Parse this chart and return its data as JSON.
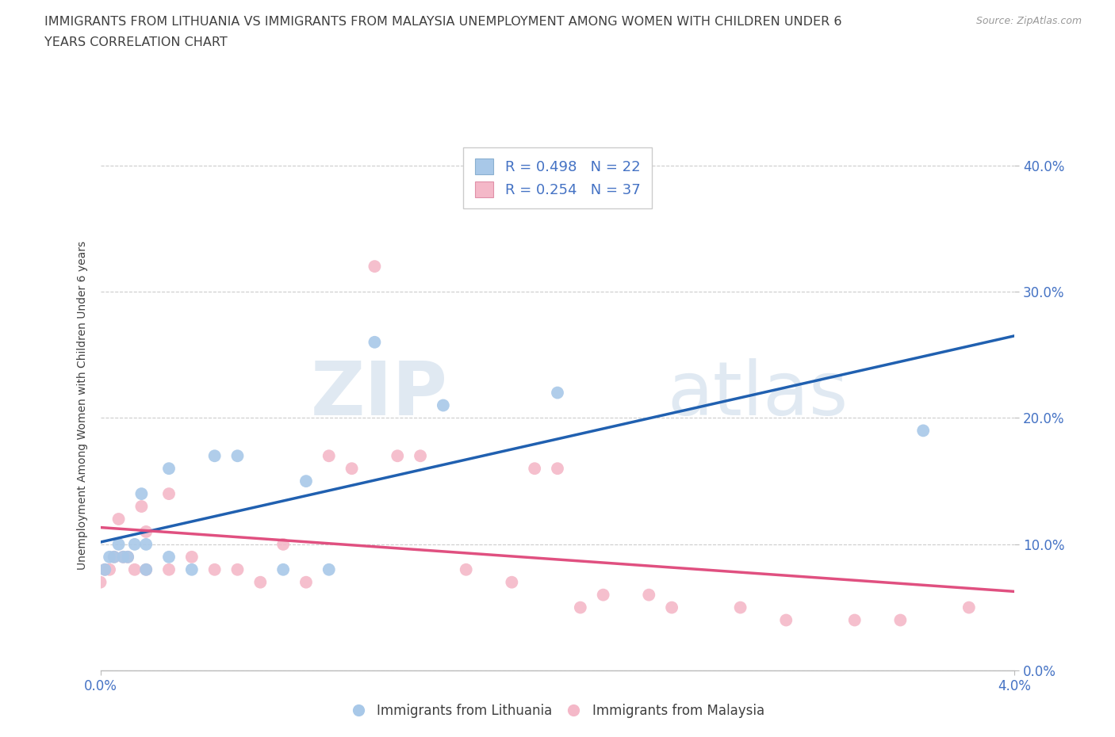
{
  "title_line1": "IMMIGRANTS FROM LITHUANIA VS IMMIGRANTS FROM MALAYSIA UNEMPLOYMENT AMONG WOMEN WITH CHILDREN UNDER 6",
  "title_line2": "YEARS CORRELATION CHART",
  "source": "Source: ZipAtlas.com",
  "ylabel": "Unemployment Among Women with Children Under 6 years",
  "watermark_part1": "ZIP",
  "watermark_part2": "atlas",
  "legend1_R": "R = 0.498",
  "legend1_N": "N = 22",
  "legend2_R": "R = 0.254",
  "legend2_N": "N = 37",
  "xmin": 0.0,
  "xmax": 0.04,
  "ymin": 0.0,
  "ymax": 0.42,
  "yticks": [
    0.0,
    0.1,
    0.2,
    0.3,
    0.4
  ],
  "xticks": [
    0.0,
    0.04
  ],
  "ytick_labels": [
    "0.0%",
    "10.0%",
    "20.0%",
    "30.0%",
    "40.0%"
  ],
  "xtick_labels": [
    "0.0%",
    "4.0%"
  ],
  "blue_scatter_color": "#a8c8e8",
  "pink_scatter_color": "#f4b8c8",
  "blue_line_color": "#2060b0",
  "pink_line_color": "#e05080",
  "axis_tick_color": "#4472c4",
  "grid_color": "#cccccc",
  "title_color": "#404040",
  "source_color": "#999999",
  "lithuania_x": [
    0.0002,
    0.0004,
    0.0006,
    0.0008,
    0.001,
    0.0012,
    0.0015,
    0.0018,
    0.002,
    0.002,
    0.003,
    0.003,
    0.004,
    0.005,
    0.006,
    0.008,
    0.009,
    0.01,
    0.012,
    0.015,
    0.02,
    0.036
  ],
  "lithuania_y": [
    0.08,
    0.09,
    0.09,
    0.1,
    0.09,
    0.09,
    0.1,
    0.14,
    0.08,
    0.1,
    0.09,
    0.16,
    0.08,
    0.17,
    0.17,
    0.08,
    0.15,
    0.08,
    0.26,
    0.21,
    0.22,
    0.19
  ],
  "malaysia_x": [
    0.0,
    0.0002,
    0.0004,
    0.0006,
    0.0008,
    0.001,
    0.0012,
    0.0015,
    0.0018,
    0.002,
    0.002,
    0.003,
    0.003,
    0.004,
    0.005,
    0.006,
    0.007,
    0.008,
    0.009,
    0.01,
    0.011,
    0.012,
    0.013,
    0.014,
    0.016,
    0.018,
    0.019,
    0.02,
    0.021,
    0.022,
    0.024,
    0.025,
    0.028,
    0.03,
    0.033,
    0.035,
    0.038
  ],
  "malaysia_y": [
    0.07,
    0.08,
    0.08,
    0.09,
    0.12,
    0.09,
    0.09,
    0.08,
    0.13,
    0.08,
    0.11,
    0.08,
    0.14,
    0.09,
    0.08,
    0.08,
    0.07,
    0.1,
    0.07,
    0.17,
    0.16,
    0.32,
    0.17,
    0.17,
    0.08,
    0.07,
    0.16,
    0.16,
    0.05,
    0.06,
    0.06,
    0.05,
    0.05,
    0.04,
    0.04,
    0.04,
    0.05
  ]
}
